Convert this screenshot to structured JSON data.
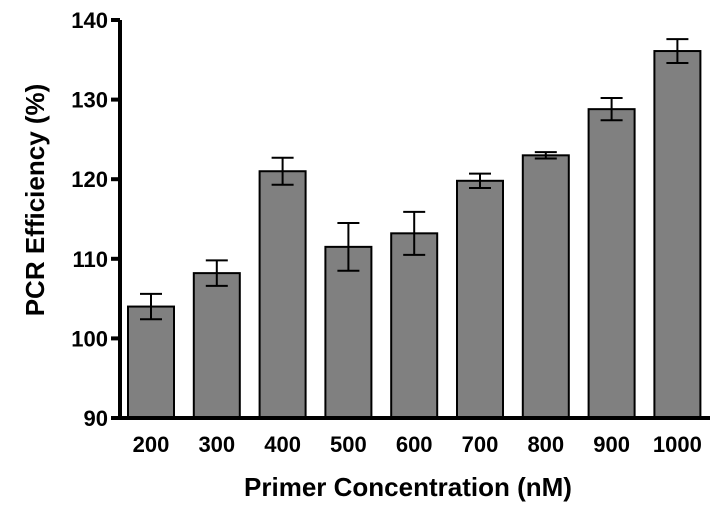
{
  "chart_data": {
    "type": "bar",
    "title": "",
    "xlabel": "Primer Concentration (nM)",
    "ylabel": "PCR Efficiency (%)",
    "categories": [
      "200",
      "300",
      "400",
      "500",
      "600",
      "700",
      "800",
      "900",
      "1000"
    ],
    "values": [
      104.0,
      108.2,
      121.0,
      111.5,
      113.2,
      119.8,
      123.0,
      128.8,
      136.1
    ],
    "error": [
      1.6,
      1.6,
      1.7,
      3.0,
      2.7,
      0.9,
      0.4,
      1.4,
      1.5
    ],
    "ylim": [
      90,
      140
    ],
    "yticks": [
      "90",
      "100",
      "110",
      "120",
      "130",
      "140"
    ],
    "grid": false,
    "colors": {
      "bar_fill": "#808080",
      "bar_stroke": "#000000",
      "axis": "#000000"
    }
  }
}
